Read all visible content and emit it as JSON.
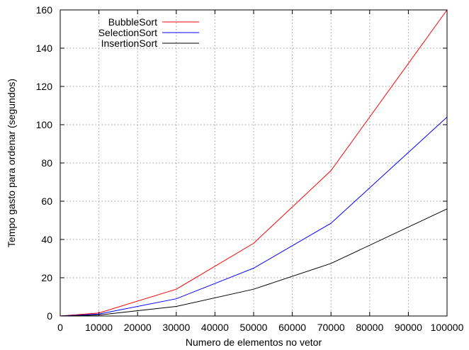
{
  "chart_data": {
    "type": "line",
    "title": "",
    "xlabel": "Numero de elementos no vetor",
    "ylabel": "Tempo gasto para ordenar (segundos)",
    "xlim": [
      0,
      100000
    ],
    "ylim": [
      0,
      160
    ],
    "xticks": [
      "0",
      "10000",
      "20000",
      "30000",
      "40000",
      "50000",
      "60000",
      "70000",
      "80000",
      "90000",
      "100000"
    ],
    "yticks": [
      "0",
      "20",
      "40",
      "60",
      "80",
      "100",
      "120",
      "140",
      "160"
    ],
    "grid": true,
    "legend_position": "top-left",
    "x": [
      0,
      10000,
      30000,
      50000,
      70000,
      100000
    ],
    "series": [
      {
        "name": "BubbleSort",
        "color": "#ff0000",
        "values": [
          0,
          1.6,
          14,
          38,
          76,
          160
        ]
      },
      {
        "name": "SelectionSort",
        "color": "#0000ff",
        "values": [
          0,
          1.0,
          9,
          25,
          48.5,
          104
        ]
      },
      {
        "name": "InsertionSort",
        "color": "#000000",
        "values": [
          0,
          0.5,
          5,
          14,
          27.5,
          56
        ]
      }
    ]
  }
}
